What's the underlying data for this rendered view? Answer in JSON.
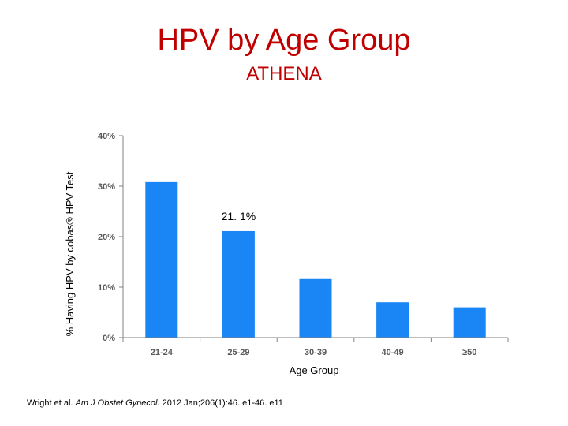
{
  "title": "HPV by Age Group",
  "subtitle": "ATHENA",
  "citation": {
    "authors": "Wright et al.",
    "journal": "Am J Obstet Gynecol.",
    "details": "2012 Jan;206(1):46. e1-46. e11"
  },
  "chart_data": {
    "type": "bar",
    "categories": [
      "21-24",
      "25-29",
      "30-39",
      "40-49",
      "≥50"
    ],
    "values": [
      30.8,
      21.1,
      11.6,
      7.0,
      6.0
    ],
    "xlabel": "Age Group",
    "ylabel": "% Having HPV by cobas® HPV Test",
    "ylim": [
      0,
      40
    ],
    "yticks": [
      0,
      10,
      20,
      30,
      40
    ],
    "ytick_labels": [
      "0%",
      "10%",
      "20%",
      "30%",
      "40%"
    ],
    "annotation": {
      "category": "25-29",
      "text": "21. 1%"
    },
    "bar_color": "#1a86f5",
    "axis_color": "#808080",
    "grid": false,
    "legend": false
  }
}
